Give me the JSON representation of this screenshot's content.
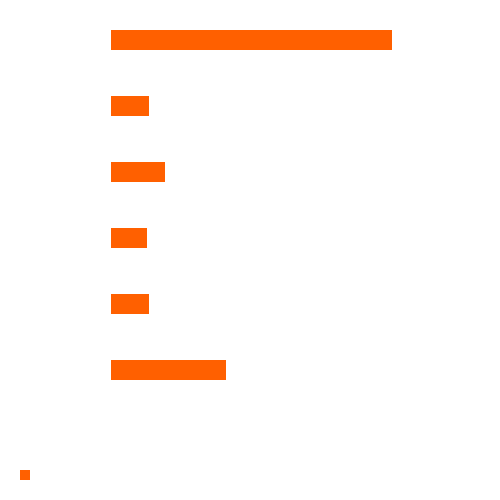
{
  "chart_data": {
    "type": "bar",
    "orientation": "horizontal",
    "categories": [
      null,
      null,
      null,
      null,
      null,
      null
    ],
    "series": [
      {
        "color": "#ff6000",
        "values": [
          281,
          38,
          54,
          36,
          38,
          115
        ]
      }
    ],
    "xlim": [
      0,
      300
    ],
    "legend": "lower left"
  }
}
